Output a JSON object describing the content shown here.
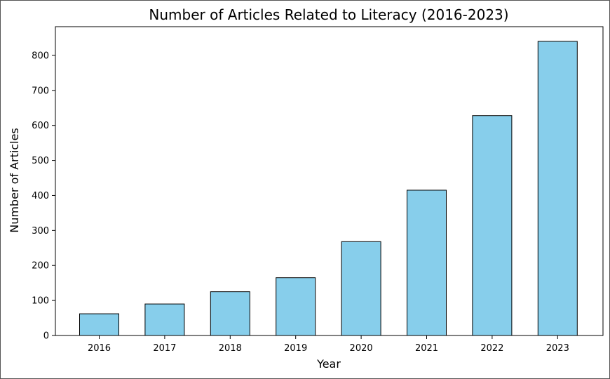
{
  "chart_data": {
    "type": "bar",
    "title": "Number of Articles Related to Literacy (2016-2023)",
    "xlabel": "Year",
    "ylabel": "Number of Articles",
    "categories": [
      "2016",
      "2017",
      "2018",
      "2019",
      "2020",
      "2021",
      "2022",
      "2023"
    ],
    "values": [
      62,
      90,
      125,
      165,
      268,
      415,
      628,
      840
    ],
    "ylim": [
      0,
      882
    ],
    "yticks": [
      0,
      100,
      200,
      300,
      400,
      500,
      600,
      700,
      800
    ],
    "grid": false,
    "bar_color": "#87ceeb",
    "edge_color": "#000000"
  }
}
